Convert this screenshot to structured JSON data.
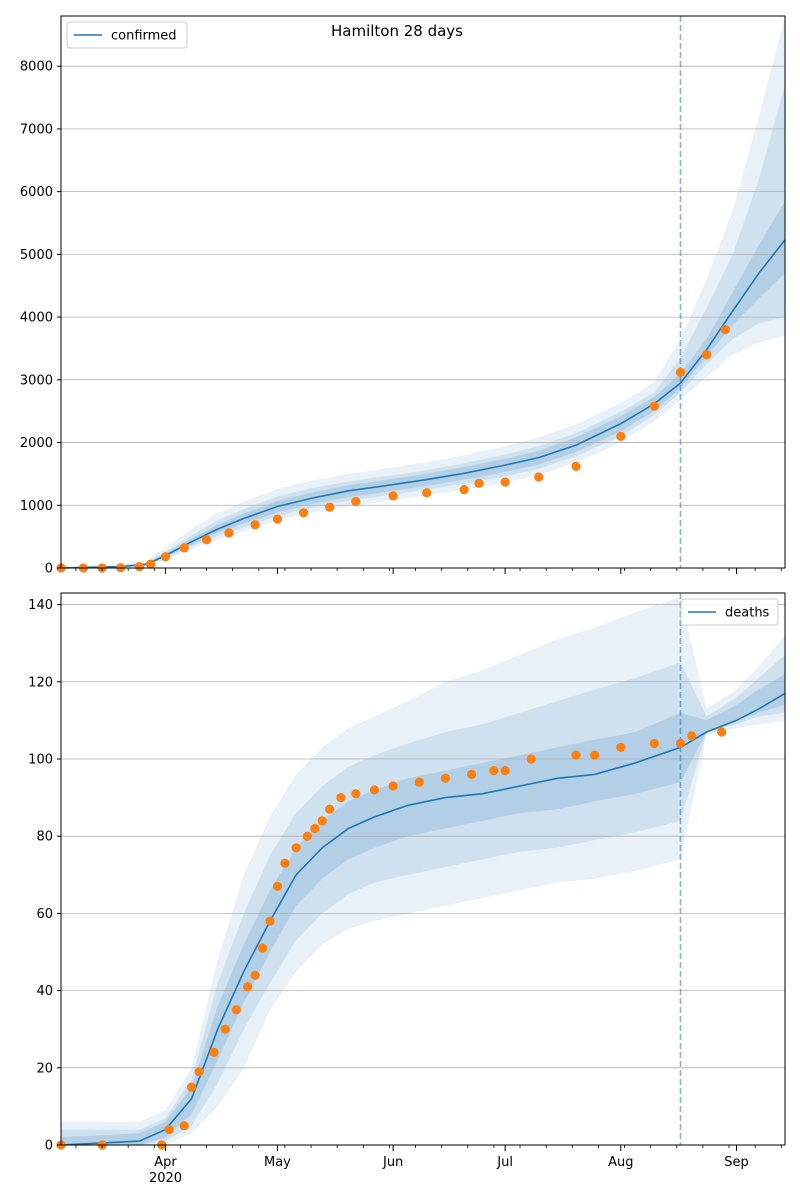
{
  "figure": {
    "title": "Hamilton 28 days"
  },
  "colors": {
    "model": "#1f77b4",
    "observed": "#ff7f0e",
    "grid": "#b0b0b0",
    "cutoff": "#1f77b4"
  },
  "chart_data": [
    {
      "type": "line",
      "title": "Hamilton 28 days",
      "legend": {
        "label": "confirmed",
        "placement": "top-left"
      },
      "xlabel": "",
      "ylabel": "",
      "xlim": [
        "2020-03-04",
        "2020-09-14"
      ],
      "ylim": [
        0,
        8800
      ],
      "yticks": [
        0,
        1000,
        2000,
        3000,
        4000,
        5000,
        6000,
        7000,
        8000
      ],
      "forecast_start": "2020-08-17",
      "grid": "horizontal",
      "model_median": {
        "x": [
          "2020-03-04",
          "2020-03-20",
          "2020-03-27",
          "2020-04-01",
          "2020-04-08",
          "2020-04-15",
          "2020-04-22",
          "2020-05-01",
          "2020-05-10",
          "2020-05-20",
          "2020-06-01",
          "2020-06-10",
          "2020-06-20",
          "2020-07-01",
          "2020-07-10",
          "2020-07-20",
          "2020-08-01",
          "2020-08-10",
          "2020-08-17",
          "2020-08-24",
          "2020-08-31",
          "2020-09-07",
          "2020-09-14"
        ],
        "y": [
          0,
          20,
          60,
          200,
          420,
          620,
          790,
          980,
          1110,
          1230,
          1330,
          1410,
          1510,
          1640,
          1760,
          1960,
          2300,
          2620,
          2950,
          3480,
          4100,
          4700,
          5230
        ]
      },
      "bands": [
        {
          "level": "outer",
          "lower": [
            0,
            0,
            30,
            120,
            300,
            450,
            580,
            760,
            880,
            980,
            1080,
            1160,
            1250,
            1360,
            1480,
            1680,
            2000,
            2340,
            2680,
            3050,
            3400,
            3600,
            3700
          ],
          "upper": [
            30,
            60,
            120,
            330,
            620,
            880,
            1060,
            1260,
            1390,
            1500,
            1600,
            1690,
            1800,
            1940,
            2080,
            2290,
            2630,
            2960,
            3650,
            4600,
            5700,
            7200,
            8800
          ]
        },
        {
          "level": "middle",
          "lower": [
            0,
            5,
            40,
            150,
            340,
            510,
            650,
            830,
            960,
            1070,
            1170,
            1250,
            1340,
            1460,
            1580,
            1780,
            2100,
            2440,
            2800,
            3250,
            3650,
            3900,
            4000
          ],
          "upper": [
            15,
            40,
            90,
            260,
            520,
            760,
            940,
            1140,
            1270,
            1380,
            1480,
            1560,
            1670,
            1810,
            1940,
            2150,
            2490,
            2800,
            3350,
            4150,
            5000,
            6200,
            7700
          ]
        },
        {
          "level": "inner",
          "lower": [
            0,
            10,
            50,
            170,
            370,
            560,
            710,
            890,
            1020,
            1130,
            1230,
            1310,
            1410,
            1530,
            1650,
            1850,
            2180,
            2510,
            2860,
            3370,
            3880,
            4300,
            4700
          ],
          "upper": [
            5,
            30,
            70,
            230,
            470,
            690,
            870,
            1070,
            1200,
            1320,
            1420,
            1500,
            1610,
            1740,
            1870,
            2080,
            2420,
            2730,
            3100,
            3650,
            4400,
            5150,
            5850
          ]
        }
      ],
      "observed": {
        "x": [
          "2020-03-04",
          "2020-03-10",
          "2020-03-15",
          "2020-03-20",
          "2020-03-25",
          "2020-03-28",
          "2020-04-01",
          "2020-04-06",
          "2020-04-12",
          "2020-04-18",
          "2020-04-25",
          "2020-05-01",
          "2020-05-08",
          "2020-05-15",
          "2020-05-22",
          "2020-06-01",
          "2020-06-10",
          "2020-06-20",
          "2020-06-24",
          "2020-07-01",
          "2020-07-10",
          "2020-07-20",
          "2020-08-01",
          "2020-08-10",
          "2020-08-17",
          "2020-08-24",
          "2020-08-29"
        ],
        "y": [
          0,
          0,
          0,
          5,
          20,
          60,
          180,
          320,
          450,
          560,
          690,
          780,
          880,
          970,
          1060,
          1150,
          1200,
          1250,
          1350,
          1370,
          1450,
          1620,
          2100,
          2580,
          3120,
          3400,
          3800
        ]
      }
    },
    {
      "type": "line",
      "legend": {
        "label": "deaths",
        "placement": "top-right"
      },
      "xlabel": "",
      "ylabel": "",
      "xlim": [
        "2020-03-04",
        "2020-09-14"
      ],
      "ylim": [
        0,
        143
      ],
      "yticks": [
        0,
        20,
        40,
        60,
        80,
        100,
        120,
        140
      ],
      "xticks": [
        {
          "date": "2020-04-01",
          "label": "Apr",
          "sublabel": "2020"
        },
        {
          "date": "2020-05-01",
          "label": "May",
          "sublabel": ""
        },
        {
          "date": "2020-06-01",
          "label": "Jun",
          "sublabel": ""
        },
        {
          "date": "2020-07-01",
          "label": "Jul",
          "sublabel": ""
        },
        {
          "date": "2020-08-01",
          "label": "Aug",
          "sublabel": ""
        },
        {
          "date": "2020-09-01",
          "label": "Sep",
          "sublabel": ""
        }
      ],
      "forecast_start": "2020-08-17",
      "grid": "horizontal",
      "model_median": {
        "x": [
          "2020-03-04",
          "2020-03-25",
          "2020-04-01",
          "2020-04-08",
          "2020-04-15",
          "2020-04-22",
          "2020-04-29",
          "2020-05-06",
          "2020-05-13",
          "2020-05-20",
          "2020-05-27",
          "2020-06-05",
          "2020-06-15",
          "2020-06-25",
          "2020-07-05",
          "2020-07-15",
          "2020-07-25",
          "2020-08-05",
          "2020-08-17",
          "2020-08-24",
          "2020-09-01",
          "2020-09-07",
          "2020-09-14"
        ],
        "y": [
          0,
          1,
          4,
          12,
          30,
          45,
          58,
          70,
          77,
          82,
          85,
          88,
          90,
          91,
          93,
          95,
          96,
          99,
          103,
          107,
          110,
          113,
          117
        ]
      },
      "bands": [
        {
          "level": "outer",
          "lower": [
            0,
            0,
            0,
            3,
            10,
            20,
            35,
            45,
            52,
            56,
            58,
            60,
            62,
            64,
            66,
            68,
            69,
            71,
            74,
            106,
            108,
            109,
            110
          ],
          "upper": [
            6,
            6,
            9,
            20,
            48,
            70,
            85,
            96,
            103,
            108,
            111,
            115,
            120,
            123,
            127,
            131,
            134,
            138,
            142,
            113,
            118,
            124,
            132
          ]
        },
        {
          "level": "middle",
          "lower": [
            0,
            0,
            1,
            5,
            16,
            30,
            42,
            53,
            60,
            65,
            68,
            70,
            72,
            74,
            76,
            77,
            79,
            81,
            84,
            107,
            109,
            111,
            112
          ],
          "upper": [
            4,
            4,
            7,
            17,
            42,
            60,
            75,
            86,
            93,
            98,
            101,
            104,
            107,
            109,
            112,
            115,
            118,
            121,
            125,
            111,
            116,
            121,
            127
          ]
        },
        {
          "level": "inner",
          "lower": [
            0,
            0,
            2,
            8,
            22,
            37,
            50,
            62,
            69,
            74,
            77,
            80,
            82,
            84,
            86,
            87,
            89,
            91,
            94,
            107,
            110,
            112,
            114
          ],
          "upper": [
            2,
            3,
            6,
            15,
            36,
            52,
            66,
            77,
            84,
            89,
            92,
            95,
            97,
            99,
            101,
            103,
            105,
            107,
            112,
            110,
            114,
            118,
            122
          ]
        }
      ],
      "observed": {
        "x": [
          "2020-03-04",
          "2020-03-15",
          "2020-03-31",
          "2020-04-02",
          "2020-04-06",
          "2020-04-08",
          "2020-04-10",
          "2020-04-14",
          "2020-04-17",
          "2020-04-20",
          "2020-04-23",
          "2020-04-25",
          "2020-04-27",
          "2020-04-29",
          "2020-05-01",
          "2020-05-03",
          "2020-05-06",
          "2020-05-09",
          "2020-05-11",
          "2020-05-13",
          "2020-05-15",
          "2020-05-18",
          "2020-05-22",
          "2020-05-27",
          "2020-06-01",
          "2020-06-08",
          "2020-06-15",
          "2020-06-22",
          "2020-06-28",
          "2020-07-01",
          "2020-07-08",
          "2020-07-20",
          "2020-07-25",
          "2020-08-01",
          "2020-08-10",
          "2020-08-17",
          "2020-08-20",
          "2020-08-28"
        ],
        "y": [
          0,
          0,
          0,
          4,
          5,
          15,
          19,
          24,
          30,
          35,
          41,
          44,
          51,
          58,
          67,
          73,
          77,
          80,
          82,
          84,
          87,
          90,
          91,
          92,
          93,
          94,
          95,
          96,
          97,
          97,
          100,
          101,
          101,
          103,
          104,
          104,
          106,
          107
        ]
      }
    }
  ]
}
